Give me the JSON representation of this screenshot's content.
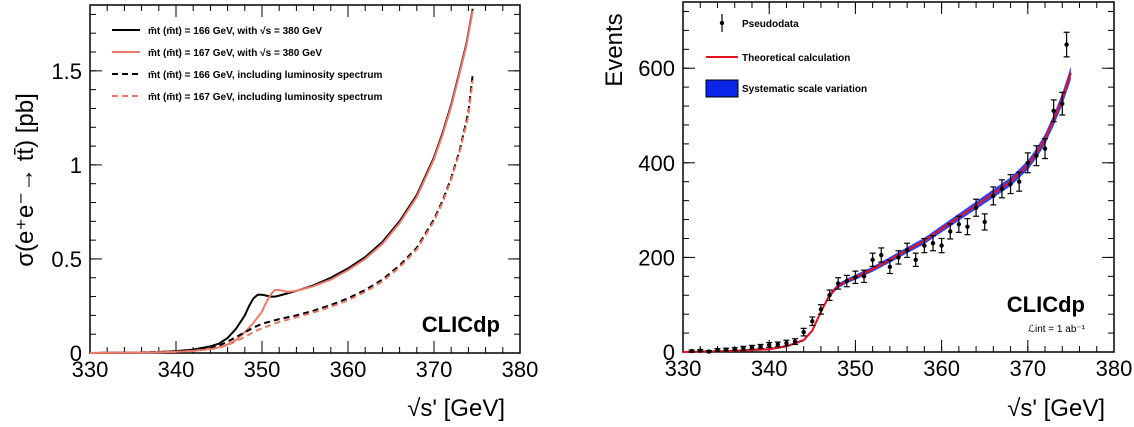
{
  "chart_data": [
    {
      "type": "line",
      "xlabel": "√s' [GeV]",
      "ylabel": "σ(e⁺e⁻→ tt̄) [pb]",
      "xlim": [
        330,
        380
      ],
      "ylim": [
        0,
        1.85
      ],
      "xticks": [
        "330",
        "340",
        "350",
        "360",
        "370",
        "380"
      ],
      "yticks": [
        "0",
        "0.5",
        "1",
        "1.5"
      ],
      "brand": "CLICdp",
      "legend_position": "top-left",
      "series": [
        {
          "name": "m̄t (m̄t) = 166 GeV, with √s = 380 GeV",
          "color": "#000000",
          "dash": "solid",
          "x": [
            330,
            335,
            338,
            340,
            342,
            344,
            345,
            346,
            347,
            348,
            348.5,
            349,
            349.5,
            350,
            350.5,
            351,
            351.5,
            352,
            354,
            356,
            358,
            360,
            362,
            364,
            366,
            368,
            370,
            371,
            372,
            373,
            373.8,
            374.5
          ],
          "y": [
            0,
            0.002,
            0.005,
            0.01,
            0.018,
            0.035,
            0.05,
            0.08,
            0.13,
            0.2,
            0.25,
            0.29,
            0.31,
            0.31,
            0.305,
            0.3,
            0.3,
            0.305,
            0.33,
            0.36,
            0.4,
            0.45,
            0.51,
            0.59,
            0.7,
            0.84,
            1.04,
            1.17,
            1.32,
            1.5,
            1.65,
            1.83
          ]
        },
        {
          "name": "m̄t (m̄t) = 167 GeV, with √s = 380 GeV",
          "color": "#f07a6a",
          "dash": "solid",
          "x": [
            330,
            335,
            338,
            340,
            342,
            344,
            345,
            346,
            347,
            348,
            349,
            350,
            350.5,
            351,
            351.5,
            352,
            352.5,
            353,
            354,
            356,
            358,
            360,
            362,
            364,
            366,
            368,
            370,
            371,
            372,
            373,
            373.8,
            374.5
          ],
          "y": [
            0,
            0.002,
            0.004,
            0.007,
            0.012,
            0.022,
            0.03,
            0.045,
            0.07,
            0.11,
            0.16,
            0.22,
            0.27,
            0.31,
            0.335,
            0.335,
            0.33,
            0.325,
            0.33,
            0.355,
            0.39,
            0.44,
            0.5,
            0.58,
            0.69,
            0.83,
            1.03,
            1.16,
            1.31,
            1.49,
            1.64,
            1.82
          ]
        },
        {
          "name": "m̄t (m̄t) = 166 GeV, including luminosity spectrum",
          "color": "#000000",
          "dash": "dashed",
          "x": [
            330,
            335,
            340,
            342,
            344,
            345,
            346,
            347,
            348,
            349,
            350,
            352,
            354,
            356,
            358,
            360,
            362,
            364,
            366,
            368,
            370,
            371,
            372,
            373,
            374,
            374.5
          ],
          "y": [
            0,
            0.002,
            0.008,
            0.015,
            0.028,
            0.04,
            0.06,
            0.085,
            0.11,
            0.135,
            0.155,
            0.18,
            0.2,
            0.225,
            0.255,
            0.29,
            0.335,
            0.39,
            0.465,
            0.56,
            0.71,
            0.81,
            0.93,
            1.08,
            1.28,
            1.48
          ]
        },
        {
          "name": "m̄t (m̄t) = 167 GeV, including luminosity spectrum",
          "color": "#f07a6a",
          "dash": "dashed",
          "x": [
            330,
            335,
            340,
            342,
            344,
            345,
            346,
            347,
            348,
            349,
            350,
            352,
            354,
            356,
            358,
            360,
            362,
            364,
            366,
            368,
            370,
            371,
            372,
            373,
            374,
            374.5
          ],
          "y": [
            0,
            0.002,
            0.006,
            0.011,
            0.02,
            0.028,
            0.042,
            0.062,
            0.085,
            0.11,
            0.132,
            0.165,
            0.19,
            0.215,
            0.245,
            0.28,
            0.325,
            0.38,
            0.455,
            0.55,
            0.7,
            0.8,
            0.92,
            1.07,
            1.26,
            1.45
          ]
        }
      ]
    },
    {
      "type": "scatter",
      "xlabel": "√s' [GeV]",
      "ylabel": "Events",
      "xlim": [
        330,
        380
      ],
      "ylim": [
        0,
        740
      ],
      "xticks": [
        "330",
        "340",
        "350",
        "360",
        "370",
        "380"
      ],
      "yticks": [
        "0",
        "200",
        "400",
        "600"
      ],
      "brand": "CLICdp",
      "lumi_label": "ℒint = 1 ab⁻¹",
      "legend_position": "top-left",
      "legend": [
        "Pseudodata",
        "Theoretical calculation",
        "Systematic scale variation"
      ],
      "pseudodata": {
        "x": [
          331,
          332,
          333,
          334,
          335,
          336,
          337,
          338,
          339,
          340,
          341,
          342,
          343,
          344,
          345,
          346,
          347,
          348,
          349,
          350,
          351,
          352,
          353,
          354,
          355,
          356,
          357,
          358,
          359,
          360,
          361,
          362,
          363,
          364,
          365,
          366,
          367,
          368,
          369,
          370,
          371,
          372,
          373,
          374,
          374.5
        ],
        "y": [
          2,
          3,
          1,
          4,
          5,
          6,
          8,
          10,
          12,
          15,
          16,
          19,
          22,
          42,
          65,
          90,
          120,
          145,
          150,
          158,
          160,
          195,
          205,
          180,
          200,
          215,
          195,
          225,
          230,
          225,
          255,
          270,
          265,
          305,
          275,
          330,
          345,
          355,
          360,
          400,
          415,
          430,
          510,
          525,
          650
        ],
        "err": [
          2,
          2,
          2,
          3,
          3,
          3,
          4,
          4,
          4,
          5,
          5,
          6,
          6,
          8,
          9,
          10,
          11,
          12,
          12,
          13,
          13,
          14,
          15,
          14,
          14,
          15,
          14,
          15,
          16,
          15,
          16,
          17,
          17,
          18,
          17,
          19,
          19,
          20,
          20,
          21,
          21,
          21,
          23,
          24,
          26
        ]
      },
      "theory": {
        "color": "#e8101c",
        "x": [
          330,
          335,
          340,
          342,
          344,
          345,
          346,
          347,
          348,
          349,
          350,
          352,
          354,
          356,
          358,
          360,
          362,
          364,
          366,
          368,
          370,
          371,
          372,
          373,
          374,
          375
        ],
        "y": [
          0,
          2,
          6,
          12,
          25,
          45,
          85,
          120,
          140,
          150,
          158,
          175,
          195,
          215,
          235,
          260,
          285,
          310,
          335,
          360,
          395,
          420,
          450,
          490,
          535,
          590
        ]
      },
      "systematic_band_color": "#0a24e8"
    }
  ]
}
